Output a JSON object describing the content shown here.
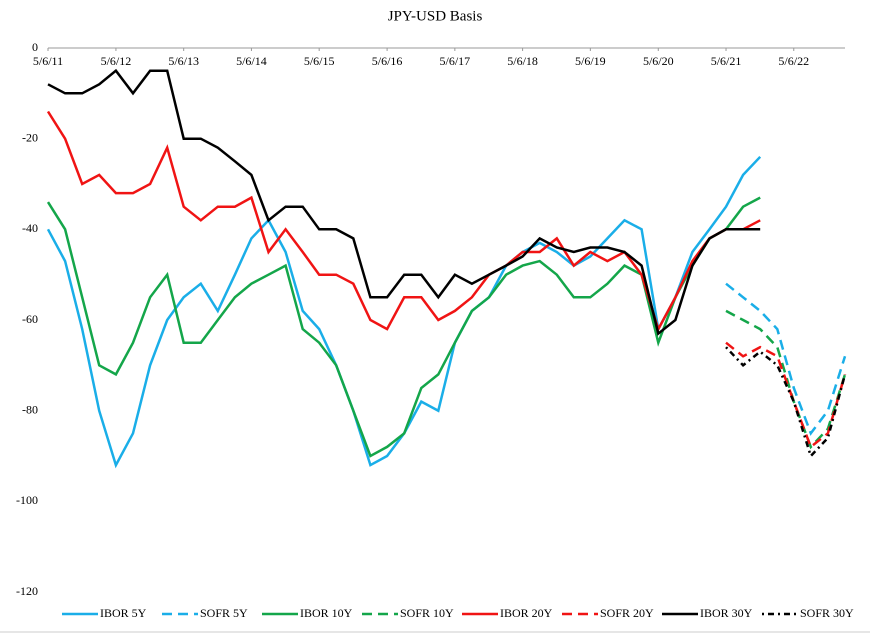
{
  "chart_data": {
    "type": "line",
    "title": "JPY-USD Basis",
    "x": [
      "5/6/11",
      "8/6/11",
      "11/6/11",
      "2/6/12",
      "5/6/12",
      "8/6/12",
      "11/6/12",
      "2/6/13",
      "5/6/13",
      "8/6/13",
      "11/6/13",
      "2/6/14",
      "5/6/14",
      "8/6/14",
      "11/6/14",
      "2/6/15",
      "5/6/15",
      "8/6/15",
      "11/6/15",
      "2/6/16",
      "5/6/16",
      "8/6/16",
      "11/6/16",
      "2/6/17",
      "5/6/17",
      "8/6/17",
      "11/6/17",
      "2/6/18",
      "5/6/18",
      "8/6/18",
      "11/6/18",
      "2/6/19",
      "5/6/19",
      "8/6/19",
      "11/6/19",
      "2/6/20",
      "5/6/20",
      "8/6/20",
      "11/6/20",
      "2/6/21",
      "5/6/21",
      "8/6/21",
      "11/6/21",
      "2/6/22",
      "5/6/22",
      "8/6/22",
      "11/6/22",
      "2/6/23"
    ],
    "xlim": [
      "5/6/11",
      "2/6/23"
    ],
    "xticks": [
      "5/6/11",
      "5/6/12",
      "5/6/13",
      "5/6/14",
      "5/6/15",
      "5/6/16",
      "5/6/17",
      "5/6/18",
      "5/6/19",
      "5/6/20",
      "5/6/21",
      "5/6/22"
    ],
    "ylim": [
      -120,
      0
    ],
    "yticks": [
      0,
      -20,
      -40,
      -60,
      -80,
      -100,
      -120
    ],
    "series": [
      {
        "name": "IBOR 5Y",
        "color": "#1aaee8",
        "dash": "solid",
        "values": [
          -40,
          -47,
          -62,
          -80,
          -92,
          -85,
          -70,
          -60,
          -55,
          -52,
          -58,
          -50,
          -42,
          -38,
          -45,
          -58,
          -62,
          -70,
          -80,
          -92,
          -90,
          -85,
          -78,
          -80,
          -65,
          -58,
          -55,
          -48,
          -45,
          -43,
          -45,
          -48,
          -46,
          -42,
          -38,
          -40,
          -62,
          -55,
          -45,
          -40,
          -35,
          -28,
          -24,
          null,
          null,
          null,
          null,
          null
        ]
      },
      {
        "name": "SOFR 5Y",
        "color": "#1aaee8",
        "dash": "dashed",
        "values": [
          null,
          null,
          null,
          null,
          null,
          null,
          null,
          null,
          null,
          null,
          null,
          null,
          null,
          null,
          null,
          null,
          null,
          null,
          null,
          null,
          null,
          null,
          null,
          null,
          null,
          null,
          null,
          null,
          null,
          null,
          null,
          null,
          null,
          null,
          null,
          null,
          null,
          null,
          null,
          null,
          -52,
          -55,
          -58,
          -62,
          -75,
          -85,
          -80,
          -68
        ]
      },
      {
        "name": "IBOR 10Y",
        "color": "#14a64a",
        "dash": "solid",
        "values": [
          -34,
          -40,
          -55,
          -70,
          -72,
          -65,
          -55,
          -50,
          -65,
          -65,
          -60,
          -55,
          -52,
          -50,
          -48,
          -62,
          -65,
          -70,
          -80,
          -90,
          -88,
          -85,
          -75,
          -72,
          -65,
          -58,
          -55,
          -50,
          -48,
          -47,
          -50,
          -55,
          -55,
          -52,
          -48,
          -50,
          -65,
          -55,
          -48,
          -42,
          -40,
          -35,
          -33,
          null,
          null,
          null,
          null,
          null
        ]
      },
      {
        "name": "SOFR 10Y",
        "color": "#14a64a",
        "dash": "dashed",
        "values": [
          null,
          null,
          null,
          null,
          null,
          null,
          null,
          null,
          null,
          null,
          null,
          null,
          null,
          null,
          null,
          null,
          null,
          null,
          null,
          null,
          null,
          null,
          null,
          null,
          null,
          null,
          null,
          null,
          null,
          null,
          null,
          null,
          null,
          null,
          null,
          null,
          null,
          null,
          null,
          null,
          -58,
          -60,
          -62,
          -66,
          -78,
          -88,
          -84,
          -72
        ]
      },
      {
        "name": "IBOR 20Y",
        "color": "#f01414",
        "dash": "solid",
        "values": [
          -14,
          -20,
          -30,
          -28,
          -32,
          -32,
          -30,
          -22,
          -35,
          -38,
          -35,
          -35,
          -33,
          -45,
          -40,
          -45,
          -50,
          -50,
          -52,
          -60,
          -62,
          -55,
          -55,
          -60,
          -58,
          -55,
          -50,
          -48,
          -45,
          -45,
          -42,
          -48,
          -45,
          -47,
          -45,
          -50,
          -62,
          -55,
          -47,
          -42,
          -40,
          -40,
          -38,
          null,
          null,
          null,
          null,
          null
        ]
      },
      {
        "name": "SOFR 20Y",
        "color": "#f01414",
        "dash": "dashed",
        "values": [
          null,
          null,
          null,
          null,
          null,
          null,
          null,
          null,
          null,
          null,
          null,
          null,
          null,
          null,
          null,
          null,
          null,
          null,
          null,
          null,
          null,
          null,
          null,
          null,
          null,
          null,
          null,
          null,
          null,
          null,
          null,
          null,
          null,
          null,
          null,
          null,
          null,
          null,
          null,
          null,
          -65,
          -68,
          -66,
          -68,
          -78,
          -88,
          -85,
          -72
        ]
      },
      {
        "name": "IBOR 30Y",
        "color": "#000000",
        "dash": "solid",
        "values": [
          -8,
          -10,
          -10,
          -8,
          -5,
          -10,
          -5,
          -5,
          -20,
          -20,
          -22,
          -25,
          -28,
          -38,
          -35,
          -35,
          -40,
          -40,
          -42,
          -55,
          -55,
          -50,
          -50,
          -55,
          -50,
          -52,
          -50,
          -48,
          -46,
          -42,
          -44,
          -45,
          -44,
          -44,
          -45,
          -48,
          -63,
          -60,
          -48,
          -42,
          -40,
          -40,
          -40,
          null,
          null,
          null,
          null,
          null
        ]
      },
      {
        "name": "SOFR 30Y",
        "color": "#000000",
        "dash": "dashdot",
        "values": [
          null,
          null,
          null,
          null,
          null,
          null,
          null,
          null,
          null,
          null,
          null,
          null,
          null,
          null,
          null,
          null,
          null,
          null,
          null,
          null,
          null,
          null,
          null,
          null,
          null,
          null,
          null,
          null,
          null,
          null,
          null,
          null,
          null,
          null,
          null,
          null,
          null,
          null,
          null,
          null,
          -66,
          -70,
          -67,
          -70,
          -78,
          -90,
          -86,
          -72
        ]
      }
    ]
  }
}
